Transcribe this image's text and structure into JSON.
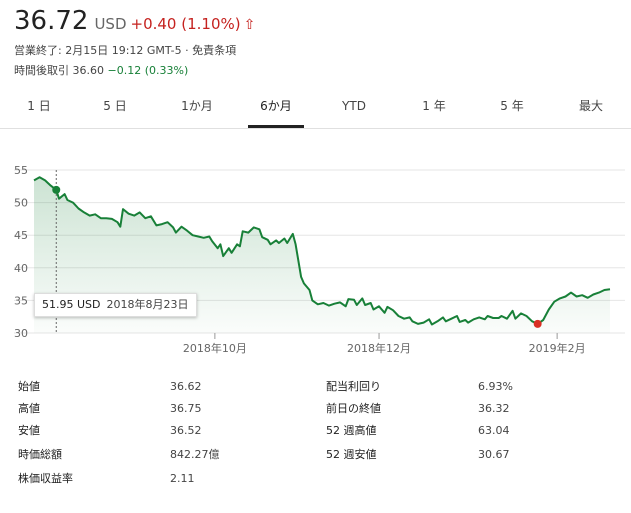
{
  "quote": {
    "price": "36.72",
    "currency": "USD",
    "change": "+0.40 (1.10%)",
    "arrow_icon": "arrow-up-icon",
    "up_color": "#c5221f",
    "close_status": "営業終了: 2月15日 19:12 GMT-5 · 免責条項",
    "after_hours_label": "時間後取引",
    "after_hours_price": "36.60",
    "after_hours_change": "−0.12 (0.33%)"
  },
  "tabs": [
    {
      "label": "1 日",
      "active": false
    },
    {
      "label": "5 日",
      "active": false
    },
    {
      "label": "1か月",
      "active": false
    },
    {
      "label": "6か月",
      "active": true
    },
    {
      "label": "YTD",
      "active": false
    },
    {
      "label": "1 年",
      "active": false
    },
    {
      "label": "5 年",
      "active": false
    },
    {
      "label": "最大",
      "active": false
    }
  ],
  "chart_data": {
    "type": "line",
    "y_ticks": [
      30,
      35,
      40,
      45,
      50,
      55
    ],
    "ylim": [
      30,
      55
    ],
    "x_ticks": [
      {
        "label": "2018年10月",
        "x": 37
      },
      {
        "label": "2018年12月",
        "x": 98
      },
      {
        "label": "2019年2月",
        "x": 158
      }
    ],
    "xlim": [
      0,
      177
    ],
    "line_color": "#188038",
    "series": [
      {
        "values": [
          [
            0,
            53.4
          ],
          [
            2,
            53.9
          ],
          [
            4,
            53.4
          ],
          [
            6,
            52.6
          ],
          [
            8,
            51.95
          ],
          [
            9,
            50.6
          ],
          [
            11,
            51.3
          ],
          [
            12,
            50.4
          ],
          [
            14,
            50.0
          ],
          [
            16,
            49.1
          ],
          [
            18,
            48.5
          ],
          [
            20,
            48.0
          ],
          [
            22,
            48.2
          ],
          [
            24,
            47.6
          ],
          [
            26,
            47.6
          ],
          [
            28,
            47.5
          ],
          [
            30,
            47.0
          ],
          [
            31,
            46.3
          ],
          [
            32,
            49.0
          ],
          [
            34,
            48.3
          ],
          [
            36,
            48.0
          ],
          [
            38,
            48.5
          ],
          [
            40,
            47.6
          ],
          [
            42,
            47.9
          ],
          [
            44,
            46.5
          ],
          [
            46,
            46.7
          ],
          [
            48,
            47.0
          ],
          [
            50,
            46.2
          ],
          [
            51,
            45.4
          ],
          [
            53,
            46.3
          ],
          [
            55,
            45.7
          ],
          [
            57,
            45.0
          ],
          [
            59,
            44.8
          ],
          [
            61,
            44.6
          ],
          [
            63,
            44.8
          ],
          [
            64,
            44.1
          ],
          [
            66,
            43.0
          ],
          [
            67,
            43.6
          ],
          [
            68,
            41.8
          ],
          [
            70,
            43.0
          ],
          [
            71,
            42.3
          ],
          [
            73,
            43.6
          ],
          [
            74,
            43.3
          ],
          [
            75,
            45.6
          ],
          [
            77,
            45.4
          ],
          [
            79,
            46.2
          ],
          [
            81,
            45.9
          ],
          [
            82,
            44.7
          ],
          [
            84,
            44.3
          ],
          [
            85,
            43.6
          ],
          [
            87,
            44.2
          ],
          [
            88,
            43.8
          ],
          [
            90,
            44.5
          ],
          [
            91,
            43.8
          ],
          [
            93,
            45.2
          ],
          [
            94,
            43.6
          ],
          [
            96,
            38.6
          ],
          [
            97,
            37.6
          ],
          [
            99,
            36.6
          ],
          [
            100,
            35.0
          ],
          [
            102,
            34.4
          ],
          [
            104,
            34.6
          ],
          [
            106,
            34.2
          ],
          [
            108,
            34.5
          ],
          [
            110,
            34.7
          ],
          [
            112,
            34.1
          ],
          [
            113,
            35.2
          ],
          [
            115,
            35.1
          ],
          [
            116,
            34.3
          ],
          [
            118,
            35.3
          ],
          [
            119,
            34.3
          ],
          [
            121,
            34.6
          ],
          [
            122,
            33.6
          ],
          [
            124,
            34.1
          ],
          [
            126,
            33.1
          ],
          [
            127,
            34.0
          ],
          [
            129,
            33.5
          ],
          [
            131,
            32.6
          ],
          [
            133,
            32.2
          ],
          [
            135,
            32.4
          ],
          [
            136,
            31.8
          ],
          [
            138,
            31.4
          ],
          [
            140,
            31.6
          ],
          [
            142,
            32.1
          ],
          [
            143,
            31.3
          ],
          [
            145,
            31.8
          ],
          [
            147,
            32.4
          ],
          [
            148,
            31.8
          ],
          [
            150,
            32.2
          ],
          [
            152,
            32.6
          ],
          [
            153,
            31.7
          ],
          [
            155,
            32.0
          ],
          [
            156,
            31.6
          ],
          [
            158,
            32.1
          ],
          [
            160,
            32.4
          ],
          [
            162,
            32.1
          ],
          [
            163,
            32.6
          ],
          [
            165,
            32.3
          ],
          [
            167,
            32.3
          ],
          [
            168,
            32.6
          ],
          [
            170,
            32.2
          ],
          [
            172,
            33.4
          ],
          [
            173,
            32.2
          ],
          [
            175,
            33.0
          ],
          [
            177,
            32.6
          ],
          [
            179,
            31.8
          ],
          [
            181,
            31.4
          ],
          [
            183,
            32.0
          ],
          [
            185,
            33.6
          ],
          [
            187,
            34.8
          ],
          [
            189,
            35.3
          ],
          [
            191,
            35.6
          ],
          [
            193,
            36.2
          ],
          [
            195,
            35.6
          ],
          [
            197,
            35.8
          ],
          [
            199,
            35.4
          ],
          [
            201,
            35.9
          ],
          [
            203,
            36.2
          ],
          [
            205,
            36.6
          ],
          [
            207,
            36.72
          ]
        ]
      }
    ],
    "markers": [
      {
        "x": 8,
        "y": 51.95,
        "color": "#188038"
      },
      {
        "x": 181,
        "y": 31.4,
        "color": "#d93025"
      }
    ],
    "hover_line_x": 8
  },
  "tooltip": {
    "value": "51.95 USD",
    "date": "2018年8月23日"
  },
  "stats": {
    "left": [
      {
        "label": "始値",
        "value": "36.62"
      },
      {
        "label": "高値",
        "value": "36.75"
      },
      {
        "label": "安値",
        "value": "36.52"
      },
      {
        "label": "時価総額",
        "value": "842.27億"
      },
      {
        "label": "株価収益率",
        "value": "2.11"
      }
    ],
    "right": [
      {
        "label": "配当利回り",
        "value": "6.93%"
      },
      {
        "label": "前日の終値",
        "value": "36.32"
      },
      {
        "label": "52 週高値",
        "value": "63.04"
      },
      {
        "label": "52 週安値",
        "value": "30.67"
      }
    ]
  }
}
